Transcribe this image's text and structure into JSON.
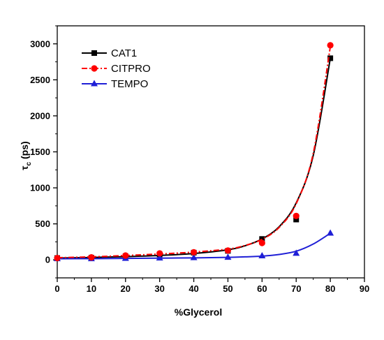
{
  "chart_data": {
    "type": "line",
    "xlabel": "%Glycerol",
    "ylabel_main": "τ",
    "ylabel_sub": "c",
    "ylabel_unit": "(ps)",
    "xlim": [
      0,
      90
    ],
    "ylim": [
      -250,
      3250
    ],
    "xticks": [
      0,
      10,
      20,
      30,
      40,
      50,
      60,
      70,
      80,
      90
    ],
    "yticks": [
      0,
      500,
      1000,
      1500,
      2000,
      2500,
      3000
    ],
    "grid": false,
    "legend_position": "top-left",
    "series": [
      {
        "name": "CAT1",
        "color": "#000000",
        "marker": "square",
        "line_style": "solid",
        "x": [
          0,
          10,
          20,
          30,
          40,
          50,
          60,
          70,
          80
        ],
        "y": [
          25,
          30,
          50,
          75,
          100,
          125,
          290,
          560,
          2800
        ],
        "fit": [
          [
            0,
            25
          ],
          [
            10,
            33
          ],
          [
            20,
            45
          ],
          [
            30,
            62
          ],
          [
            40,
            88
          ],
          [
            50,
            140
          ],
          [
            55,
            195
          ],
          [
            60,
            290
          ],
          [
            65,
            460
          ],
          [
            70,
            790
          ],
          [
            75,
            1450
          ],
          [
            80,
            2800
          ]
        ]
      },
      {
        "name": "CITPRO",
        "color": "#ff0000",
        "marker": "circle",
        "line_style": "dash-dot",
        "x": [
          0,
          10,
          20,
          30,
          40,
          50,
          60,
          70,
          80
        ],
        "y": [
          25,
          35,
          60,
          90,
          105,
          130,
          235,
          610,
          2980
        ],
        "fit": [
          [
            0,
            30
          ],
          [
            10,
            42
          ],
          [
            20,
            60
          ],
          [
            30,
            82
          ],
          [
            40,
            108
          ],
          [
            50,
            150
          ],
          [
            55,
            200
          ],
          [
            60,
            285
          ],
          [
            65,
            450
          ],
          [
            70,
            780
          ],
          [
            75,
            1480
          ],
          [
            80,
            2960
          ]
        ]
      },
      {
        "name": "TEMPO",
        "color": "#1f1fd6",
        "marker": "triangle",
        "line_style": "solid",
        "x": [
          0,
          10,
          20,
          30,
          40,
          50,
          60,
          70,
          80
        ],
        "y": [
          15,
          15,
          20,
          25,
          30,
          35,
          55,
          90,
          370
        ],
        "fit": [
          [
            0,
            15
          ],
          [
            10,
            17
          ],
          [
            20,
            20
          ],
          [
            30,
            24
          ],
          [
            40,
            28
          ],
          [
            50,
            35
          ],
          [
            55,
            42
          ],
          [
            60,
            52
          ],
          [
            65,
            75
          ],
          [
            70,
            120
          ],
          [
            75,
            220
          ],
          [
            80,
            370
          ]
        ]
      }
    ]
  }
}
